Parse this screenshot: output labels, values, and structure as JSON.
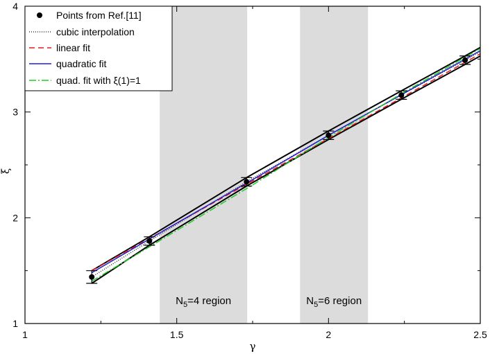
{
  "chart_data": {
    "type": "line",
    "title": "",
    "xlabel": "γ",
    "ylabel": "ξ",
    "xlim": [
      1,
      2.5
    ],
    "ylim": [
      1,
      4
    ],
    "xticks": [
      1,
      1.5,
      2,
      2.5
    ],
    "xtick_labels": [
      "1",
      "1.5",
      "2",
      "2.5"
    ],
    "yticks": [
      1,
      2,
      3,
      4
    ],
    "ytick_labels": [
      "1",
      "2",
      "3",
      "4"
    ],
    "grid": false,
    "legend_position": "top-left",
    "shaded_regions": [
      {
        "x0": 1.444,
        "x1": 1.732,
        "label_main": "N",
        "label_sub": "5",
        "label_rest": "=4 region"
      },
      {
        "x0": 1.906,
        "x1": 2.13,
        "label_main": "N",
        "label_sub": "5",
        "label_rest": "=6 region"
      }
    ],
    "points": {
      "name": "Points from Ref.[11]",
      "x": [
        1.22,
        1.41,
        1.73,
        2.0,
        2.24,
        2.45
      ],
      "y": [
        1.44,
        1.78,
        2.34,
        2.78,
        3.16,
        3.49
      ],
      "yerr": [
        0.06,
        0.04,
        0.04,
        0.04,
        0.04,
        0.04
      ]
    },
    "envelope": {
      "upper": {
        "x": [
          1.22,
          1.41,
          1.73,
          2.0,
          2.24,
          2.45,
          2.5
        ],
        "y": [
          1.5,
          1.82,
          2.38,
          2.82,
          3.2,
          3.53,
          3.61
        ]
      },
      "lower": {
        "x": [
          1.22,
          1.41,
          1.73,
          2.0,
          2.24,
          2.45,
          2.5
        ],
        "y": [
          1.38,
          1.74,
          2.3,
          2.74,
          3.12,
          3.45,
          3.53
        ]
      }
    },
    "series": [
      {
        "name": "cubic interpolation",
        "color": "#333333",
        "dash": "1,2",
        "x": [
          1.22,
          1.41,
          1.73,
          2.0,
          2.24,
          2.45,
          2.5
        ],
        "y": [
          1.44,
          1.78,
          2.34,
          2.78,
          3.16,
          3.49,
          3.57
        ]
      },
      {
        "name": "linear fit",
        "color": "#e41a1c",
        "dash": "8,5",
        "x": [
          1.22,
          2.5
        ],
        "y": [
          1.5,
          3.55
        ]
      },
      {
        "name": "quadratic fit",
        "color": "#1f1fcc",
        "dash": "",
        "x": [
          1.22,
          1.5,
          1.75,
          2.0,
          2.25,
          2.5
        ],
        "y": [
          1.48,
          1.95,
          2.36,
          2.78,
          3.18,
          3.58
        ]
      },
      {
        "name": "quad. fit with ξ(1)=1",
        "color": "#22cc22",
        "dash": "10,3,2,3",
        "x": [
          1.22,
          1.5,
          1.75,
          2.0,
          2.25,
          2.5
        ],
        "y": [
          1.4,
          1.88,
          2.31,
          2.76,
          3.19,
          3.6
        ]
      }
    ]
  }
}
